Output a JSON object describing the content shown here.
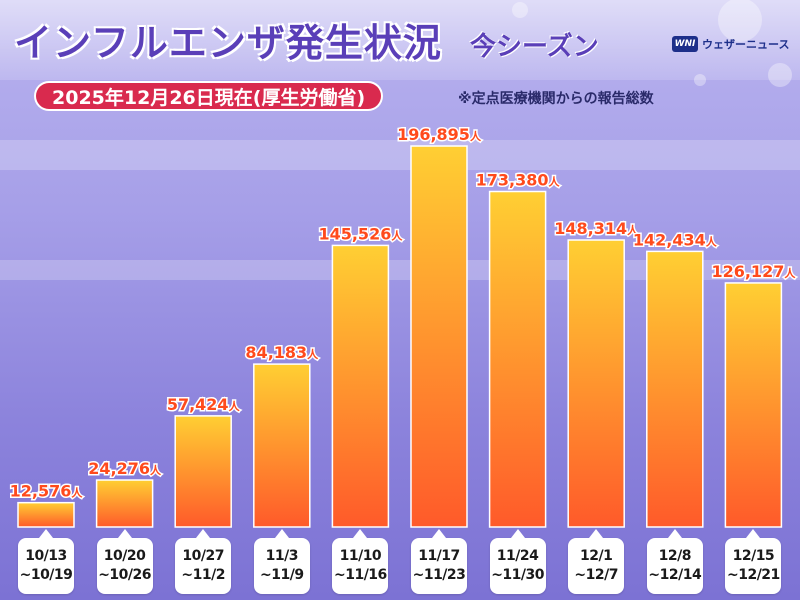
{
  "title": "インフルエンザ発生状況",
  "season": "今シーズン",
  "brand": {
    "mark": "WNI",
    "name": "ウェザーニュース"
  },
  "date_badge": "2025年12月26日現在(厚生労働省)",
  "source_note": "※定点医療機関からの報告総数",
  "colors": {
    "bar_top": "#ffcf33",
    "bar_bottom": "#ff5a2a",
    "value_label": "#ff4a1c",
    "accent": "#d92a4e",
    "title": "#5a3fb8"
  },
  "chart_data": {
    "type": "bar",
    "title": "インフルエンザ発生状況 今シーズン",
    "unit": "人",
    "categories": [
      [
        "10/13",
        "~10/19"
      ],
      [
        "10/20",
        "~10/26"
      ],
      [
        "10/27",
        "~11/2"
      ],
      [
        "11/3",
        "~11/9"
      ],
      [
        "11/10",
        "~11/16"
      ],
      [
        "11/17",
        "~11/23"
      ],
      [
        "11/24",
        "~11/30"
      ],
      [
        "12/1",
        "~12/7"
      ],
      [
        "12/8",
        "~12/14"
      ],
      [
        "12/15",
        "~12/21"
      ]
    ],
    "values": [
      12576,
      24276,
      57424,
      84183,
      145526,
      196895,
      173380,
      148314,
      142434,
      126127
    ],
    "value_labels": [
      "12,576",
      "24,276",
      "57,424",
      "84,183",
      "145,526",
      "196,895",
      "173,380",
      "148,314",
      "142,434",
      "126,127"
    ],
    "ylim": [
      0,
      200000
    ],
    "xlabel": "",
    "ylabel": "",
    "grid": false
  }
}
